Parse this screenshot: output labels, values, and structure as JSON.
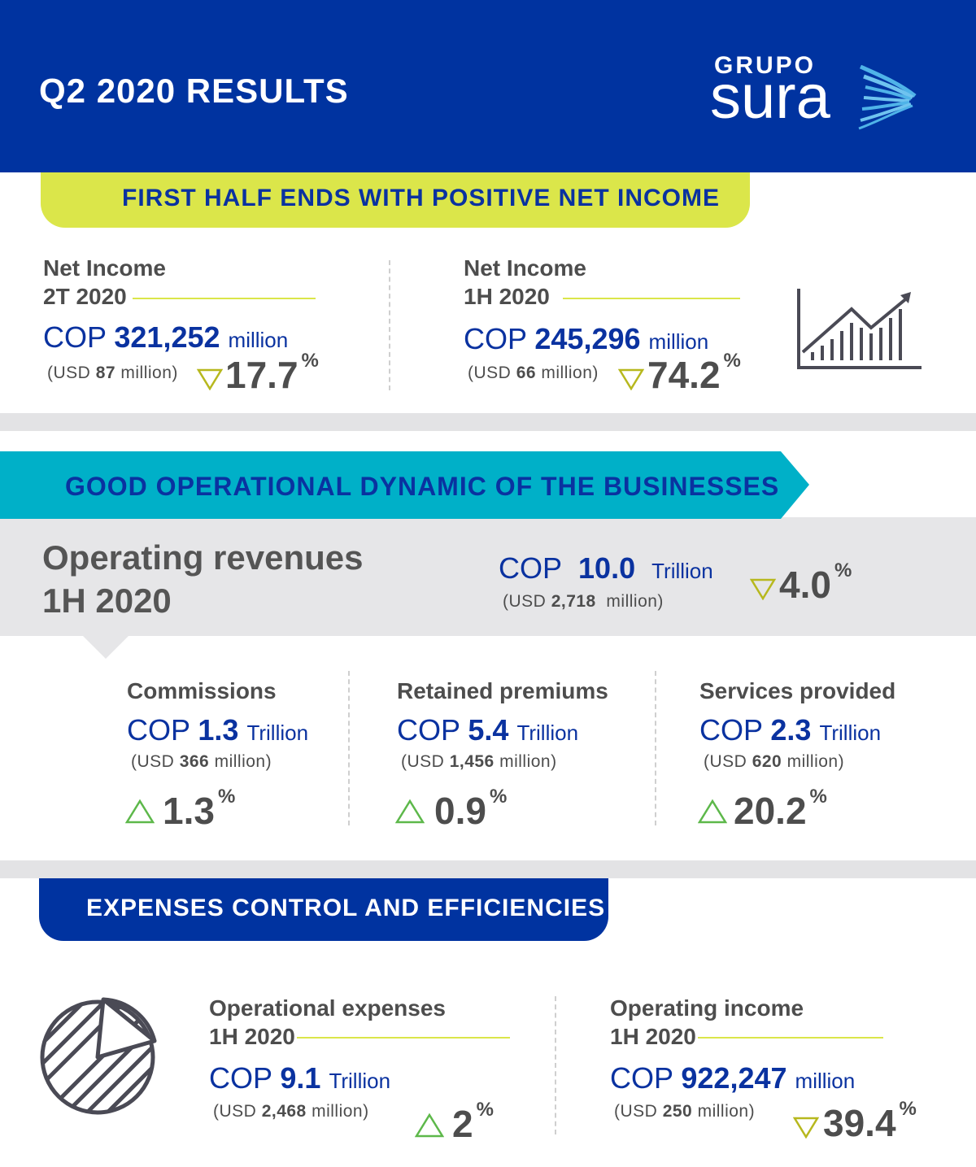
{
  "header": {
    "title": "Q2 2020 RESULTS",
    "logo_top": "GRUPO",
    "logo_main": "sura",
    "bg_color": "#0033a0"
  },
  "section1": {
    "banner": "FIRST HALF ENDS WITH POSITIVE NET INCOME",
    "banner_color": "#dbe64a",
    "left": {
      "label_line1": "Net Income",
      "label_line2": "2T 2020",
      "currency": "COP",
      "value": "321,252",
      "unit": "million",
      "usd_prefix": "(USD",
      "usd_value": "87",
      "usd_suffix": "million)",
      "change": "17.7",
      "change_unit": "%",
      "direction": "down"
    },
    "right": {
      "label_line1": "Net Income",
      "label_line2": "1H 2020",
      "currency": "COP",
      "value": "245,296",
      "unit": "million",
      "usd_prefix": "(USD",
      "usd_value": "66",
      "usd_suffix": "million)",
      "change": "74.2",
      "change_unit": "%",
      "direction": "down"
    },
    "icon": "rising-bar-chart-icon"
  },
  "section2": {
    "banner": "GOOD OPERATIONAL DYNAMIC OF THE BUSINESSES",
    "banner_color": "#00b0c8",
    "title_line1": "Operating revenues",
    "title_line2": "1H 2020",
    "currency": "COP",
    "value": "10.0",
    "unit": "Trillion",
    "usd_prefix": "(USD",
    "usd_value": "2,718",
    "usd_suffix": "million)",
    "change": "4.0",
    "change_unit": "%",
    "direction": "down",
    "items": [
      {
        "label": "Commissions",
        "currency": "COP",
        "value": "1.3",
        "unit": "Trillion",
        "usd_prefix": "(USD",
        "usd_value": "366",
        "usd_suffix": "million)",
        "change": "1.3",
        "change_unit": "%",
        "direction": "up"
      },
      {
        "label": "Retained premiums",
        "currency": "COP",
        "value": "5.4",
        "unit": "Trillion",
        "usd_prefix": "(USD",
        "usd_value": "1,456",
        "usd_suffix": "million)",
        "change": "0.9",
        "change_unit": "%",
        "direction": "up"
      },
      {
        "label": "Services provided",
        "currency": "COP",
        "value": "2.3",
        "unit": "Trillion",
        "usd_prefix": "(USD",
        "usd_value": "620",
        "usd_suffix": "million)",
        "change": "20.2",
        "change_unit": "%",
        "direction": "up"
      }
    ]
  },
  "section3": {
    "banner": "EXPENSES CONTROL AND EFFICIENCIES",
    "banner_color": "#0033a0",
    "icon": "pie-chart-icon",
    "left": {
      "label_line1": "Operational expenses",
      "label_line2": "1H 2020",
      "currency": "COP",
      "value": "9.1",
      "unit": "Trillion",
      "usd_prefix": "(USD",
      "usd_value": "2,468",
      "usd_suffix": "million)",
      "change": "2",
      "change_unit": "%",
      "direction": "up"
    },
    "right": {
      "label_line1": "Operating income",
      "label_line2": "1H 2020",
      "currency": "COP",
      "value": "922,247",
      "unit": "million",
      "usd_prefix": "(USD",
      "usd_value": "250",
      "usd_suffix": "million)",
      "change": "39.4",
      "change_unit": "%",
      "direction": "down"
    }
  },
  "colors": {
    "navy": "#0033a0",
    "lime": "#dbe64a",
    "teal": "#00b0c8",
    "triangle_down": "#b7b81e",
    "triangle_up": "#5db84a",
    "gray_text": "#4d4d4d"
  }
}
